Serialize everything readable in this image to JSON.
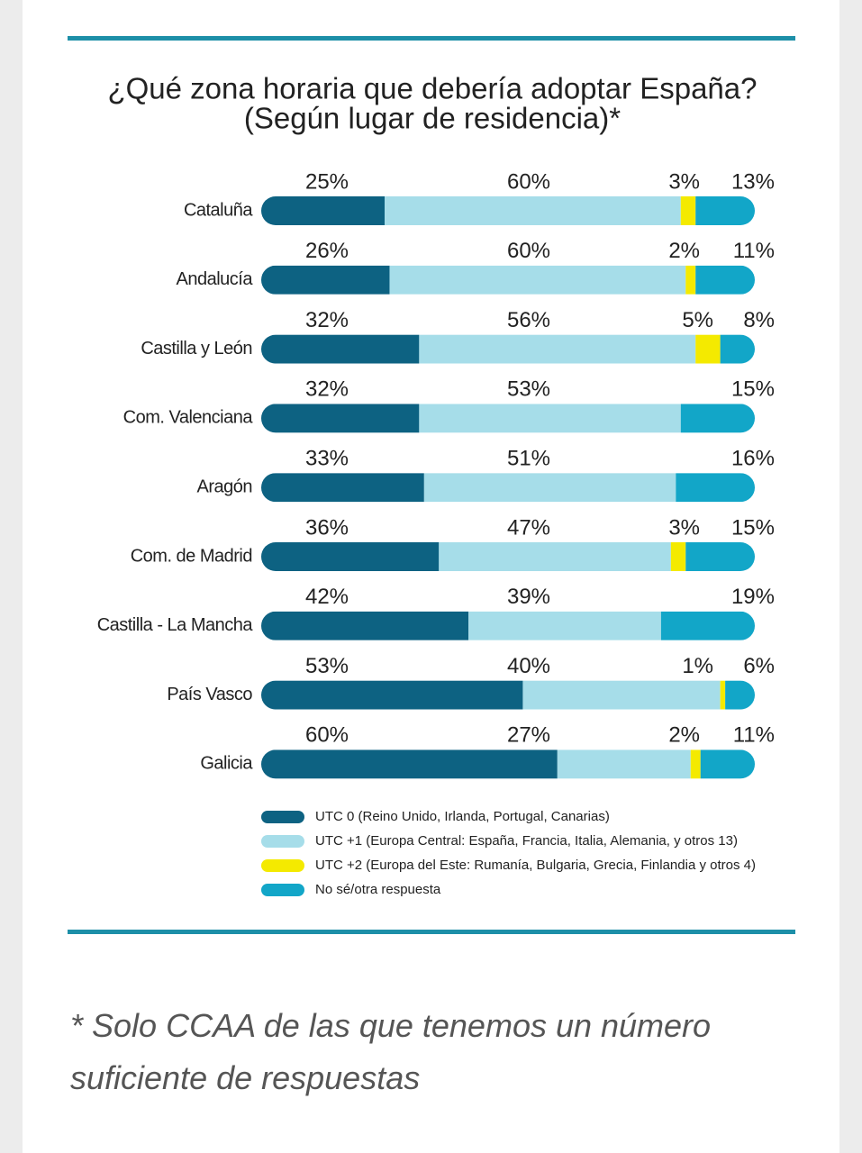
{
  "chart_data": {
    "type": "bar",
    "orientation": "horizontal",
    "stacked": true,
    "title": "¿Qué zona horaria que debería adoptar España?",
    "subtitle": "(Según lugar de residencia)*",
    "categories": [
      "Cataluña",
      "Andalucía",
      "Castilla y León",
      "Com. Valenciana",
      "Aragón",
      "Com. de Madrid",
      "Castilla - La Mancha",
      "País Vasco",
      "Galicia"
    ],
    "series": [
      {
        "name": "UTC 0 (Reino Unido, Irlanda, Portugal, Canarias)",
        "color": "#0d6282",
        "values": [
          25,
          26,
          32,
          32,
          33,
          36,
          42,
          53,
          60
        ],
        "value_labels": [
          "25%",
          "26%",
          "32%",
          "32%",
          "33%",
          "36%",
          "42%",
          "53%",
          "60%"
        ]
      },
      {
        "name": "UTC +1 (Europa Central: España, Francia, Italia, Alemania,  y otros 13)",
        "color": "#a6dde9",
        "values": [
          60,
          60,
          56,
          53,
          51,
          47,
          39,
          40,
          27
        ],
        "value_labels": [
          "60%",
          "60%",
          "56%",
          "53%",
          "51%",
          "47%",
          "39%",
          "40%",
          "27%"
        ]
      },
      {
        "name": "UTC +2 (Europa del Este: Rumanía, Bulgaria, Grecia, Finlandia y otros 4)",
        "color": "#f4ea00",
        "values": [
          3,
          2,
          5,
          null,
          null,
          3,
          null,
          1,
          2
        ],
        "value_labels": [
          "3%",
          "2%",
          "5%",
          null,
          null,
          "3%",
          null,
          "1%",
          "2%"
        ]
      },
      {
        "name": "No sé/otra respuesta",
        "color": "#12a6c8",
        "values": [
          13,
          11,
          8,
          15,
          16,
          15,
          19,
          6,
          11
        ],
        "value_labels": [
          "13%",
          "11%",
          "8%",
          "15%",
          "16%",
          "15%",
          "19%",
          "6%",
          "11%"
        ]
      }
    ]
  },
  "footnote": "* Solo CCAA de las que tenemos un número suficiente de respuestas"
}
